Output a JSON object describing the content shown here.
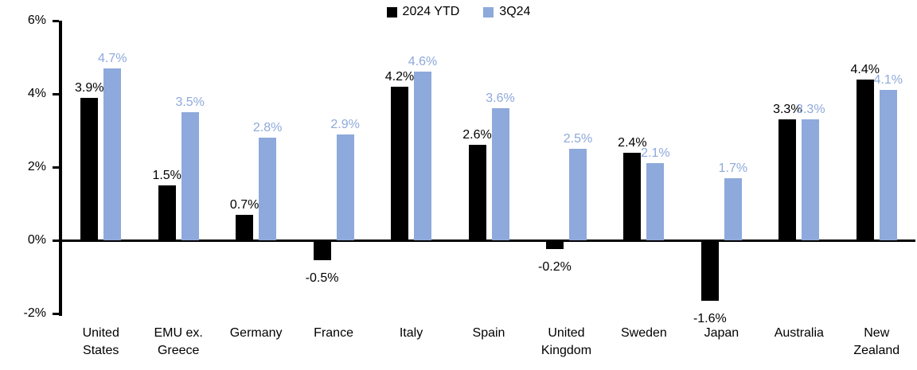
{
  "chart_data": {
    "type": "bar",
    "title": "",
    "xlabel": "",
    "ylabel": "",
    "categories": [
      "United States",
      "EMU ex. Greece",
      "Germany",
      "France",
      "Italy",
      "Spain",
      "United Kingdom",
      "Sweden",
      "Japan",
      "Australia",
      "New Zealand"
    ],
    "series": [
      {
        "name": "2024 YTD",
        "color": "#000000",
        "values": [
          3.9,
          1.5,
          0.7,
          -0.5,
          4.2,
          2.6,
          -0.2,
          2.4,
          -1.6,
          3.3,
          4.4
        ]
      },
      {
        "name": "3Q24",
        "color": "#8EA9DB",
        "values": [
          4.7,
          3.5,
          2.8,
          2.9,
          4.6,
          3.6,
          2.5,
          2.1,
          1.7,
          3.3,
          4.1
        ]
      }
    ],
    "value_suffix": "%",
    "value_decimals": 1,
    "ylim": [
      -2,
      6
    ],
    "ytick_values": [
      6,
      4,
      2,
      0,
      -2
    ],
    "ytick_labels": [
      "6%",
      "4%",
      "2%",
      "0%",
      "-2%"
    ],
    "legend_position": "top-center",
    "grid": false,
    "axis_color": "#000000",
    "background_color": "#ffffff"
  }
}
